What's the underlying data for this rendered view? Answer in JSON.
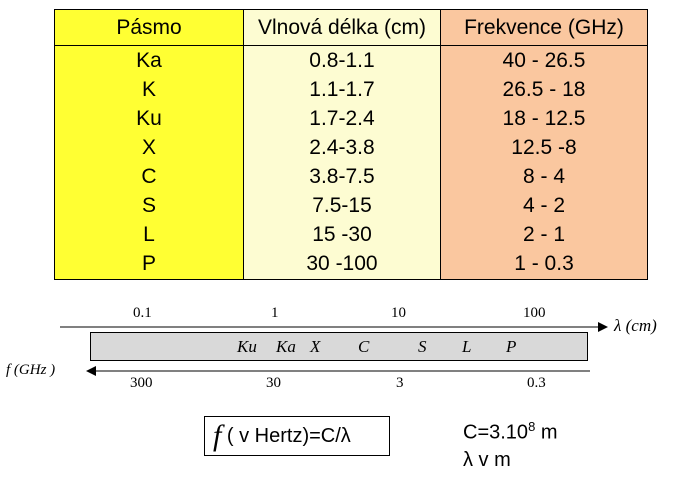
{
  "table": {
    "headers": [
      "Pásmo",
      "Vlnová délka (cm)",
      "Frekvence (GHz)"
    ],
    "rows": [
      [
        "Ka",
        "0.8-1.1",
        "40 - 26.5"
      ],
      [
        "K",
        "1.1-1.7",
        "26.5 - 18"
      ],
      [
        "Ku",
        "1.7-2.4",
        "18  - 12.5"
      ],
      [
        "X",
        "2.4-3.8",
        "12.5 -8"
      ],
      [
        "C",
        "3.8-7.5",
        "8  - 4"
      ],
      [
        "S",
        "7.5-15",
        "4  - 2"
      ],
      [
        "L",
        "15 -30",
        "2  - 1"
      ],
      [
        "P",
        "30 -100",
        "1 - 0.3"
      ]
    ],
    "colors": {
      "band": "#ffff33",
      "wavelength": "#fdfcd2",
      "frequency": "#fac79f"
    }
  },
  "diagram": {
    "wavelength_ticks": [
      "0.1",
      "1",
      "10",
      "100"
    ],
    "wavelength_axis_label": "λ (cm)",
    "frequency_ticks": [
      "300",
      "30",
      "3",
      "0.3"
    ],
    "frequency_axis_label": "f (GHz )",
    "band_labels": [
      "Ku",
      "Ka",
      "X",
      "C",
      "S",
      "L",
      "P"
    ],
    "bar_color": "#d9d9d9"
  },
  "formula": {
    "symbol": "f",
    "text": " ( v Hertz)=C/λ"
  },
  "notes": {
    "c_prefix": "C=3.10",
    "c_exponent": "8",
    "c_unit": " m",
    "lambda_line": "λ v m"
  }
}
